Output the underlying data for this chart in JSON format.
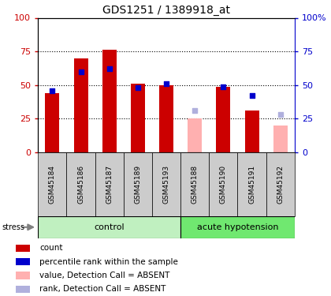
{
  "title": "GDS1251 / 1389918_at",
  "samples": [
    "GSM45184",
    "GSM45186",
    "GSM45187",
    "GSM45189",
    "GSM45193",
    "GSM45188",
    "GSM45190",
    "GSM45191",
    "GSM45192"
  ],
  "n_control": 5,
  "n_hypotension": 4,
  "red_bars": [
    44,
    70,
    76,
    51,
    50,
    null,
    49,
    31,
    null
  ],
  "blue_squares": [
    46,
    60,
    62,
    48,
    51,
    null,
    49,
    42,
    null
  ],
  "pink_bars": [
    null,
    null,
    null,
    null,
    null,
    25,
    null,
    null,
    20
  ],
  "lavender_squares": [
    null,
    null,
    null,
    null,
    null,
    31,
    null,
    null,
    28
  ],
  "ylim": [
    0,
    100
  ],
  "yticks": [
    0,
    25,
    50,
    75,
    100
  ],
  "dotted_lines": [
    25,
    50,
    75
  ],
  "control_color": "#c0f0c0",
  "hypotension_color": "#70e870",
  "sample_bg_color": "#cccccc",
  "red_bar_color": "#cc0000",
  "blue_sq_color": "#0000cc",
  "pink_bar_color": "#ffb0b0",
  "lavender_sq_color": "#b0b0dd",
  "left_tick_color": "#cc0000",
  "right_tick_color": "#0000cc",
  "bar_width": 0.5
}
